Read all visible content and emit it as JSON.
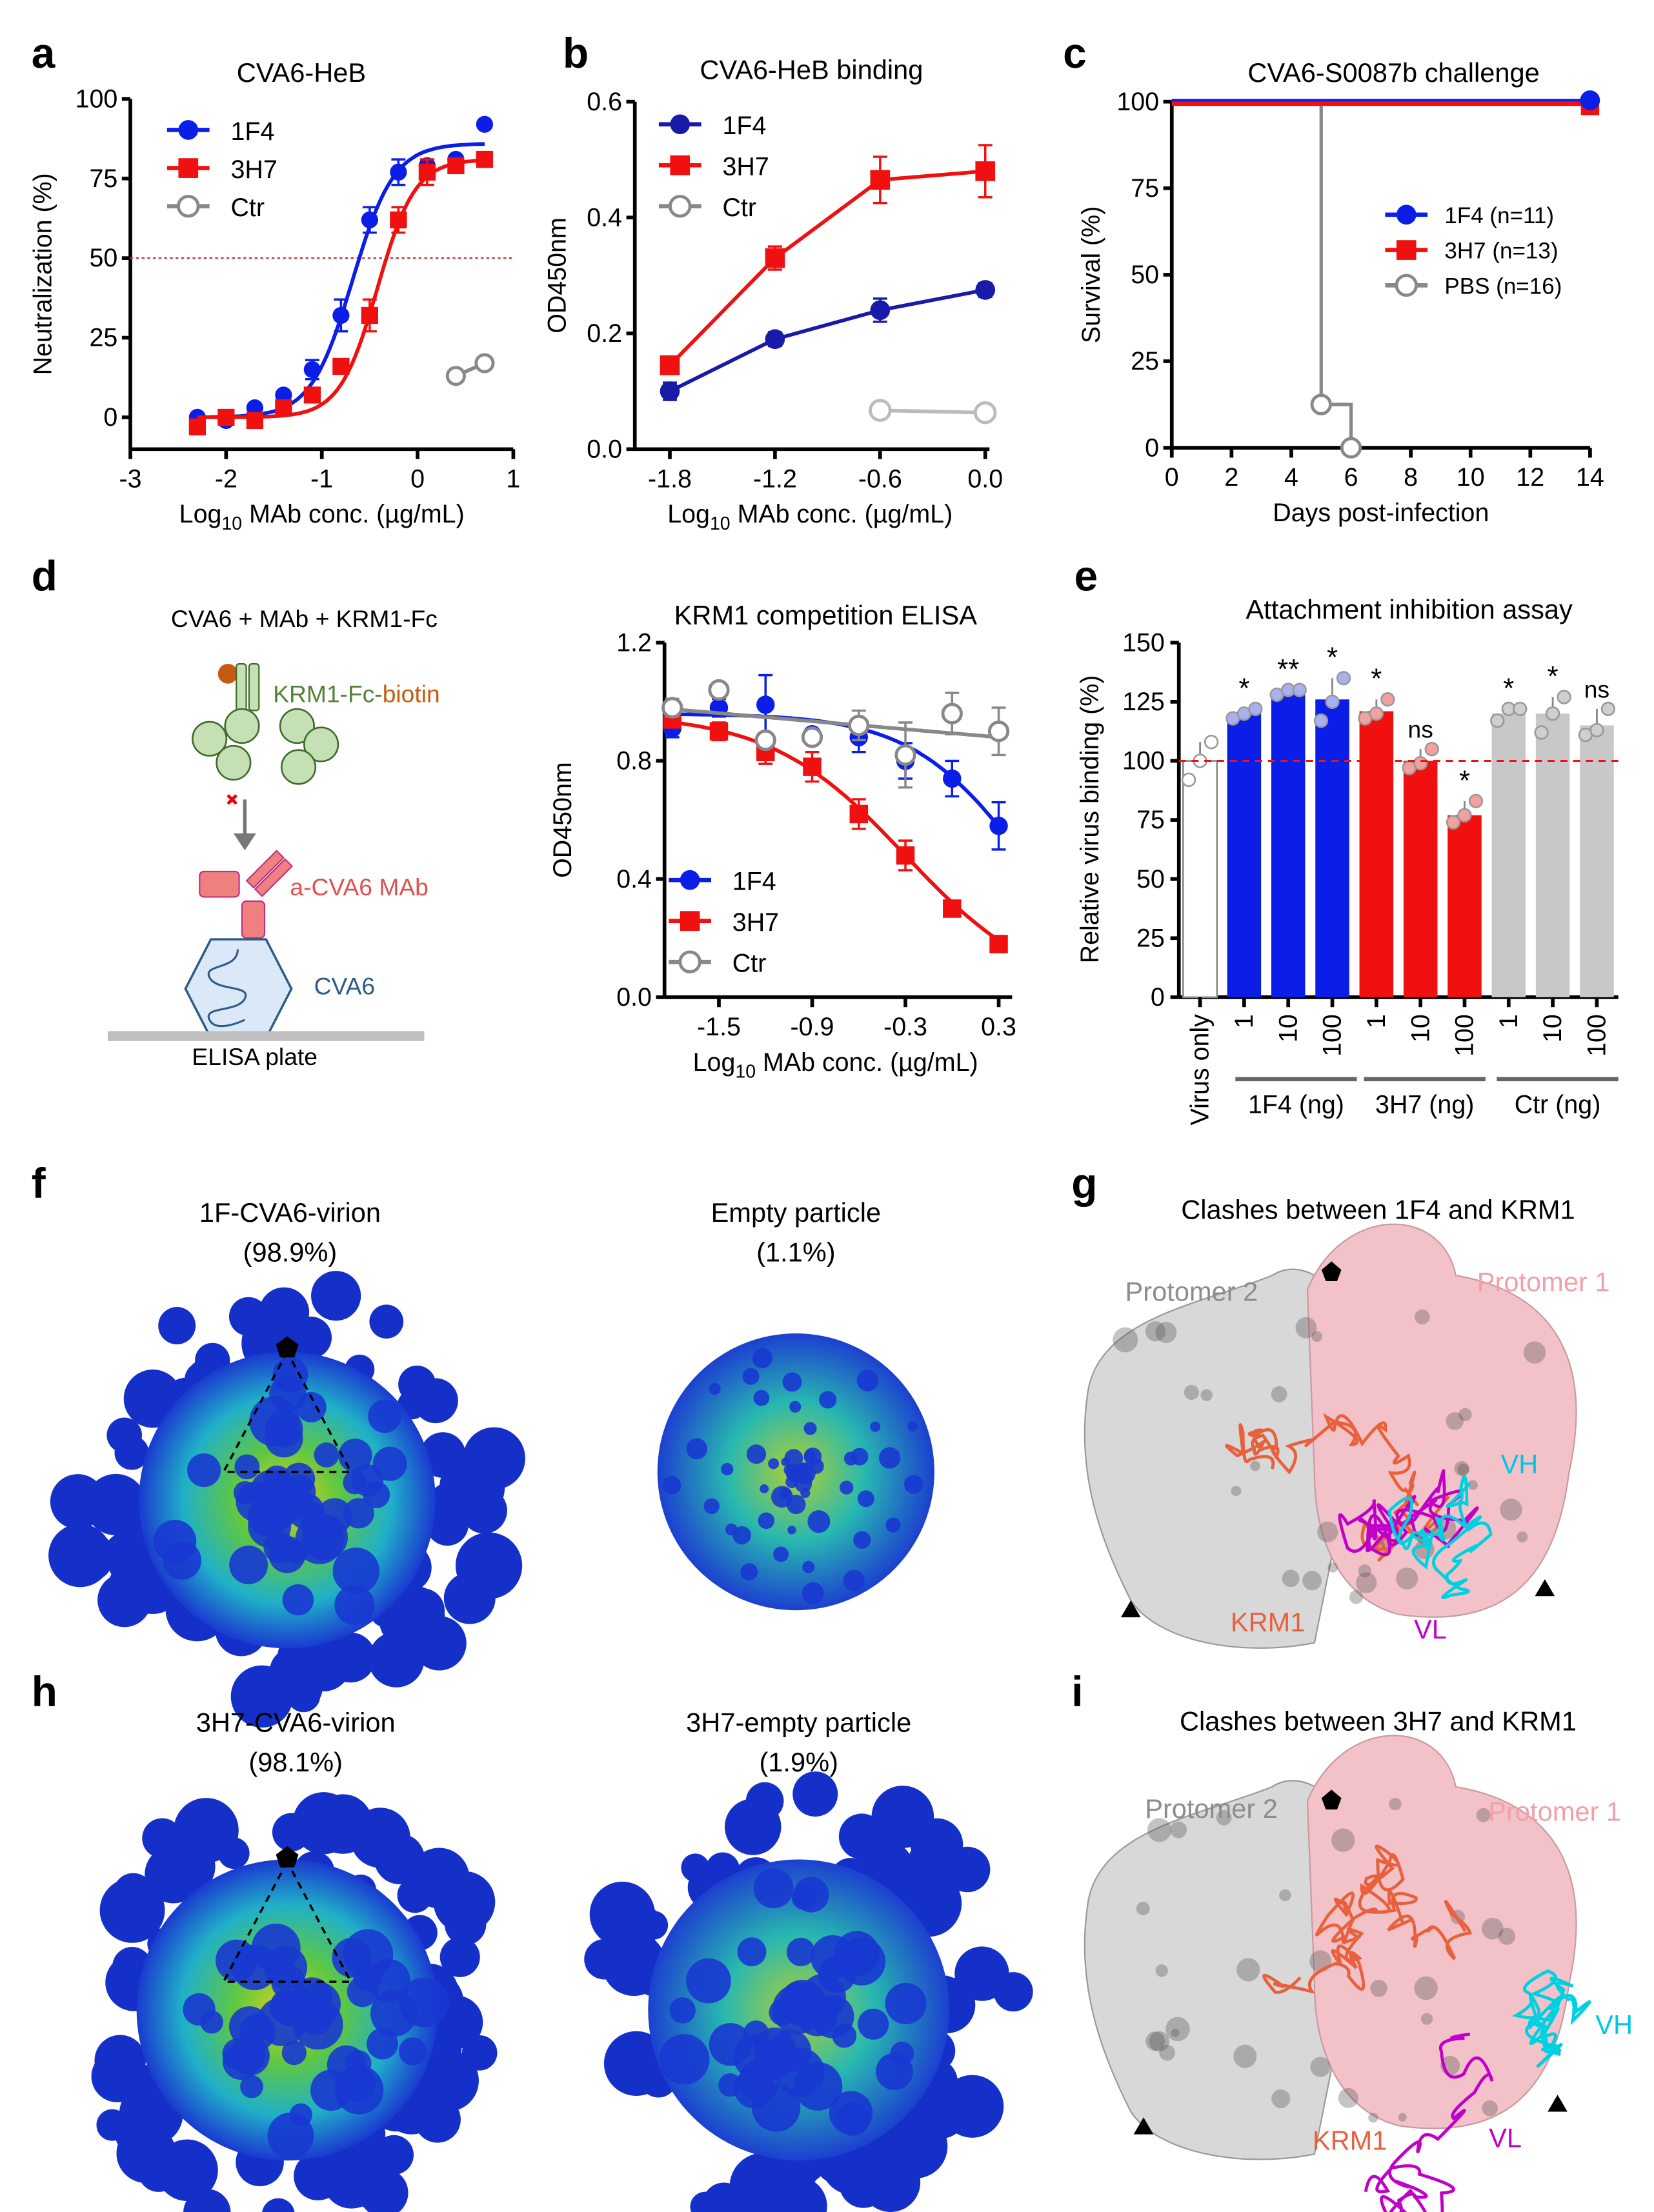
{
  "panel_labels": {
    "a": "a",
    "b": "b",
    "c": "c",
    "d": "d",
    "e": "e",
    "f": "f",
    "g": "g",
    "h": "h",
    "i": "i"
  },
  "colors": {
    "blue": "#0a1ee8",
    "red": "#f01010",
    "grey": "#888888",
    "navy": "#1a1aa8"
  },
  "chart_data": [
    {
      "id": "a",
      "type": "line",
      "title": "CVA6-HeB",
      "xlabel_pre": "Log",
      "xlabel_sub": "10",
      "xlabel_post": " MAb conc. (µg/mL)",
      "ylabel": "Neutralization (%)",
      "xlim": [
        -3,
        1
      ],
      "ylim": [
        -10,
        100
      ],
      "xticks": [
        "-3",
        "-2",
        "-1",
        "0",
        "1"
      ],
      "yticks": [
        "0",
        "25",
        "50",
        "75",
        "100"
      ],
      "reference_line": 50,
      "legend": [
        "1F4",
        "3H7",
        "Ctr"
      ],
      "legend_placement": "top-left",
      "series": [
        {
          "name": "1F4",
          "x": [
            -2.3,
            -2,
            -1.7,
            -1.4,
            -1.1,
            -0.8,
            -0.5,
            -0.2,
            0.1,
            0.4,
            0.7
          ],
          "y": [
            0,
            -1,
            3,
            7,
            15,
            32,
            62,
            77,
            79,
            81,
            92
          ],
          "err": [
            1,
            1,
            1,
            1,
            3,
            5,
            4,
            4,
            2,
            1,
            0
          ],
          "fit": {
            "top": 86,
            "ec50": -0.68,
            "hill": 2.0
          }
        },
        {
          "name": "3H7",
          "x": [
            -2.3,
            -2,
            -1.7,
            -1.4,
            -1.1,
            -0.8,
            -0.5,
            -0.2,
            0.1,
            0.4,
            0.7
          ],
          "y": [
            -3,
            0,
            -1,
            3,
            7,
            16,
            32,
            62,
            77,
            79,
            81
          ],
          "err": [
            1,
            1,
            1,
            1,
            1,
            2,
            5,
            4,
            4,
            1,
            1
          ],
          "fit": {
            "top": 81,
            "ec50": -0.42,
            "hill": 2.2
          }
        },
        {
          "name": "Ctr",
          "x": [
            0.4,
            0.7
          ],
          "y": [
            13,
            17
          ],
          "err": [
            0,
            0
          ]
        }
      ]
    },
    {
      "id": "b",
      "type": "line",
      "title": "CVA6-HeB binding",
      "xlabel_pre": "Log",
      "xlabel_sub": "10",
      "xlabel_post": " MAb conc. (µg/mL)",
      "ylabel": "OD450nm",
      "xlim": [
        -2.0,
        0.0
      ],
      "ylim": [
        0,
        0.6
      ],
      "xticks": [
        "-1.8",
        "-1.2",
        "-0.6",
        "0.0"
      ],
      "yticks": [
        "0.0",
        "0.2",
        "0.4",
        "0.6"
      ],
      "legend": [
        "1F4",
        "3H7",
        "Ctr"
      ],
      "legend_placement": "top-left",
      "series": [
        {
          "name": "1F4",
          "x": [
            -1.8,
            -1.2,
            -0.6,
            0.0
          ],
          "y": [
            0.1,
            0.19,
            0.24,
            0.275
          ],
          "err": [
            0.015,
            0.012,
            0.02,
            0.012
          ]
        },
        {
          "name": "3H7",
          "x": [
            -1.8,
            -1.2,
            -0.6,
            0.0
          ],
          "y": [
            0.145,
            0.33,
            0.465,
            0.48
          ],
          "err": [
            0.015,
            0.02,
            0.04,
            0.045
          ]
        },
        {
          "name": "Ctr",
          "x": [
            -0.6,
            0.0
          ],
          "y": [
            0.067,
            0.063
          ],
          "err": [
            0,
            0
          ]
        }
      ]
    },
    {
      "id": "c",
      "type": "line",
      "title": "CVA6-S0087b challenge",
      "xlabel": "Days post-infection",
      "ylabel": "Survival (%)",
      "xlim": [
        0,
        14
      ],
      "ylim": [
        0,
        100
      ],
      "xticks": [
        "0",
        "2",
        "4",
        "6",
        "8",
        "10",
        "12",
        "14"
      ],
      "yticks": [
        "0",
        "25",
        "50",
        "75",
        "100"
      ],
      "legend": [
        "1F4 (n=11)",
        "3H7 (n=13)",
        "PBS (n=16)"
      ],
      "legend_placement": "right",
      "series": [
        {
          "name": "1F4",
          "x": [
            0,
            14
          ],
          "y": [
            100,
            100
          ]
        },
        {
          "name": "3H7",
          "x": [
            0,
            14
          ],
          "y": [
            100,
            100
          ]
        },
        {
          "name": "PBS",
          "x": [
            0,
            5,
            5,
            6,
            6
          ],
          "y": [
            100,
            100,
            12.5,
            12.5,
            0
          ]
        }
      ]
    },
    {
      "id": "d",
      "type": "line",
      "title": "KRM1 competition ELISA",
      "xlabel_pre": "Log",
      "xlabel_sub": "10",
      "xlabel_post": " MAb conc. (µg/mL)",
      "ylabel": "OD450nm",
      "xlim": [
        -1.85,
        0.35
      ],
      "ylim": [
        0,
        1.2
      ],
      "xticks": [
        "-1.5",
        "-0.9",
        "-0.3",
        "0.3"
      ],
      "yticks": [
        "0.0",
        "0.4",
        "0.8",
        "1.2"
      ],
      "legend": [
        "1F4",
        "3H7",
        "Ctr"
      ],
      "legend_placement": "bottom-left",
      "series": [
        {
          "name": "1F4",
          "x": [
            -1.8,
            -1.5,
            -1.2,
            -0.9,
            -0.6,
            -0.3,
            0.0,
            0.3
          ],
          "y": [
            0.91,
            0.98,
            0.99,
            0.89,
            0.88,
            0.8,
            0.74,
            0.58
          ],
          "err": [
            0.03,
            0.03,
            0.1,
            0.01,
            0.05,
            0.06,
            0.06,
            0.08
          ],
          "fit": {
            "top": 0.96,
            "ic50": 0.45,
            "hill": 1.2
          }
        },
        {
          "name": "3H7",
          "x": [
            -1.8,
            -1.5,
            -1.2,
            -0.9,
            -0.6,
            -0.3,
            0.0,
            0.3
          ],
          "y": [
            0.94,
            0.9,
            0.83,
            0.78,
            0.62,
            0.48,
            0.3,
            0.18
          ],
          "err": [
            0.01,
            0.03,
            0.04,
            0.05,
            0.05,
            0.05,
            0.01,
            0.01
          ],
          "fit": {
            "top": 0.96,
            "ic50": -0.3,
            "hill": 1.0
          }
        },
        {
          "name": "Ctr",
          "x": [
            -1.8,
            -1.5,
            -1.2,
            -0.9,
            -0.6,
            -0.3,
            0.0,
            0.3
          ],
          "y": [
            0.98,
            1.04,
            0.87,
            0.88,
            0.92,
            0.82,
            0.96,
            0.9
          ],
          "err": [
            0.03,
            0,
            0,
            0,
            0.05,
            0.11,
            0.07,
            0.08
          ],
          "fit": {
            "start": 0.975,
            "end": 0.88
          }
        }
      ]
    },
    {
      "id": "e",
      "type": "bar",
      "title": "Attachment inhibition assay",
      "ylabel": "Relative virus binding (%)",
      "ylim": [
        0,
        150
      ],
      "yticks": [
        "0",
        "25",
        "50",
        "75",
        "100",
        "125",
        "150"
      ],
      "reference_line": 100,
      "categories": [
        "Virus only",
        "1",
        "10",
        "100",
        "1",
        "10",
        "100",
        "1",
        "10",
        "100"
      ],
      "groups": [
        {
          "label": "1F4 (ng)"
        },
        {
          "label": "3H7 (ng)"
        },
        {
          "label": "Ctr (ng)"
        }
      ],
      "values": [
        100,
        120,
        129,
        126,
        121,
        100,
        77,
        120,
        120,
        115
      ],
      "points": [
        [
          92,
          100,
          108
        ],
        [
          118,
          120,
          122
        ],
        [
          128,
          130,
          130
        ],
        [
          117,
          125,
          135
        ],
        [
          118,
          120,
          126
        ],
        [
          97,
          99,
          105
        ],
        [
          74,
          77,
          83
        ],
        [
          117,
          122,
          122
        ],
        [
          112,
          120,
          127
        ],
        [
          111,
          113,
          122
        ]
      ],
      "significance": [
        "",
        "*",
        "**",
        "*",
        "*",
        "ns",
        "*",
        "*",
        "*",
        "ns"
      ]
    }
  ],
  "panel_d": {
    "title": "CVA6 + MAb + KRM1-Fc",
    "krm1_label": "KRM1-Fc-",
    "biotin_label": "biotin",
    "mab_label": "a-CVA6 MAb",
    "virus_label": "CVA6",
    "plate_label": "ELISA plate"
  },
  "panel_f": {
    "left_title": "1F-CVA6-virion",
    "left_pct": "(98.9%)",
    "right_title": "Empty particle",
    "right_pct": "(1.1%)"
  },
  "panel_h": {
    "left_title": "3H7-CVA6-virion",
    "left_pct": "(98.1%)",
    "right_title": "3H7-empty particle",
    "right_pct": "(1.9%)"
  },
  "panel_g": {
    "title": "Clashes between 1F4 and KRM1",
    "protomer2": "Protomer 2",
    "protomer1": "Protomer 1",
    "vh": "VH",
    "krm1": "KRM1",
    "vl": "VL"
  },
  "panel_i": {
    "title": "Clashes between 3H7 and KRM1",
    "protomer2": "Protomer 2",
    "protomer1": "Protomer 1",
    "vh": "VH",
    "krm1": "KRM1",
    "vl": "VL"
  }
}
